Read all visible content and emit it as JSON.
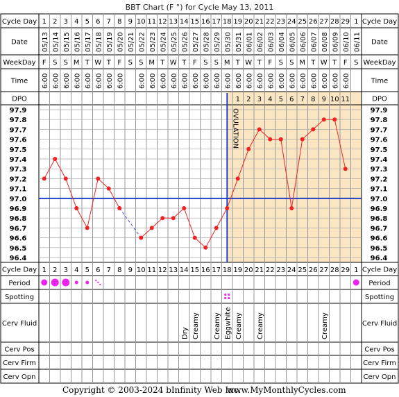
{
  "chart_data": {
    "type": "line",
    "title": "BBT Chart (F °) for Cycle May 13, 2011",
    "row_labels": {
      "cycle_day": "Cycle Day",
      "date": "Date",
      "weekday": "WeekDay",
      "time": "Time",
      "dpo": "DPO",
      "period": "Period",
      "spotting": "Spotting",
      "cerv_fluid": "Cerv Fluid",
      "cerv_pos": "Cerv Pos",
      "cerv_firm": "Cerv Firm",
      "cerv_opn": "Cerv Opn"
    },
    "cycle_days": [
      "1",
      "2",
      "3",
      "4",
      "5",
      "6",
      "7",
      "8",
      "9",
      "10",
      "11",
      "12",
      "13",
      "14",
      "15",
      "16",
      "17",
      "18",
      "19",
      "20",
      "21",
      "22",
      "23",
      "24",
      "25",
      "26",
      "27",
      "28",
      "29",
      "1"
    ],
    "dates": [
      "05/13",
      "05/14",
      "05/15",
      "05/16",
      "05/17",
      "05/18",
      "05/19",
      "05/20",
      "05/21",
      "05/22",
      "05/23",
      "05/24",
      "05/25",
      "05/26",
      "05/27",
      "05/28",
      "05/29",
      "05/30",
      "05/31",
      "06/01",
      "06/02",
      "06/03",
      "06/04",
      "06/05",
      "06/06",
      "06/07",
      "06/08",
      "06/09",
      "06/10",
      "06/11"
    ],
    "weekdays": [
      "F",
      "S",
      "S",
      "M",
      "T",
      "W",
      "T",
      "F",
      "S",
      "S",
      "M",
      "T",
      "W",
      "T",
      "F",
      "S",
      "S",
      "M",
      "T",
      "W",
      "T",
      "F",
      "S",
      "S",
      "M",
      "T",
      "W",
      "T",
      "F",
      "S"
    ],
    "times": [
      "6:00",
      "6:00",
      "6:00",
      "6:00",
      "6:00",
      "6:00",
      "6:00",
      "6:00",
      "",
      "6:00",
      "6:00",
      "6:00",
      "6:00",
      "6:00",
      "6:00",
      "6:00",
      "6:00",
      "6:00",
      "6:00",
      "6:00",
      "6:00",
      "6:00",
      "6:00",
      "6:00",
      "6:00",
      "6:00",
      "6:00",
      "6:00",
      "6:00",
      ""
    ],
    "dpo": [
      "",
      "",
      "",
      "",
      "",
      "",
      "",
      "",
      "",
      "",
      "",
      "",
      "",
      "",
      "",
      "",
      "",
      "",
      "1",
      "2",
      "3",
      "4",
      "5",
      "6",
      "7",
      "8",
      "9",
      "10",
      "11",
      ""
    ],
    "y_ticks": [
      "97.9",
      "97.8",
      "97.7",
      "97.6",
      "97.5",
      "97.4",
      "97.3",
      "97.2",
      "97.1",
      "97.0",
      "96.9",
      "96.8",
      "96.7",
      "96.6",
      "96.5",
      "96.4"
    ],
    "ylim": [
      96.4,
      97.9
    ],
    "coverline": 97.0,
    "ovulation_day_index": 17,
    "ovulation_label": "OVULATION",
    "temperatures": [
      97.2,
      97.4,
      97.2,
      96.9,
      96.7,
      97.2,
      97.1,
      96.9,
      null,
      96.6,
      96.7,
      96.8,
      96.8,
      96.9,
      96.6,
      96.5,
      96.7,
      96.9,
      97.2,
      97.5,
      97.7,
      97.6,
      97.6,
      96.9,
      97.6,
      97.7,
      97.8,
      97.8,
      97.3,
      null
    ],
    "period": [
      "medium",
      "heavy",
      "heavy",
      "light",
      "light",
      "spotting",
      "",
      "",
      "",
      "",
      "",
      "",
      "",
      "",
      "",
      "",
      "",
      "",
      "",
      "",
      "",
      "",
      "",
      "",
      "",
      "",
      "",
      "",
      "",
      "medium"
    ],
    "spotting_days": [
      17
    ],
    "cerv_fluid": [
      "",
      "",
      "",
      "",
      "",
      "",
      "",
      "",
      "",
      "",
      "",
      "",
      "",
      "Dry",
      "Creamy",
      "",
      "Creamy",
      "Eggwhite",
      "Creamy",
      "",
      "Creamy",
      "",
      "",
      "",
      "",
      "",
      "Creamy",
      "",
      "",
      ""
    ],
    "footer_copyright": "Copyright © 2003-2024 bInfinity Web Inc.",
    "footer_site": "www.MyMonthlyCycles.com"
  }
}
